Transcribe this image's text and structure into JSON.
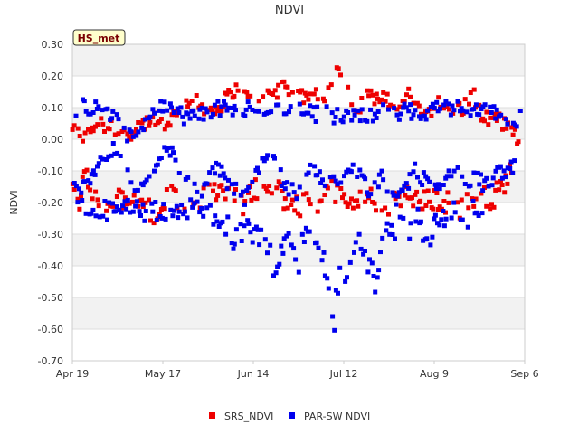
{
  "chart_data": {
    "type": "scatter",
    "title": "NDVI",
    "ylabel": "NDVI",
    "xlabel": "",
    "badge": "HS_met",
    "ylim": [
      -0.7,
      0.3
    ],
    "yticks": [
      "0.30",
      "0.20",
      "0.10",
      "0.00",
      "-0.10",
      "-0.20",
      "-0.30",
      "-0.40",
      "-0.50",
      "-0.60",
      "-0.70"
    ],
    "ytick_values": [
      0.3,
      0.2,
      0.1,
      0.0,
      -0.1,
      -0.2,
      -0.3,
      -0.4,
      -0.5,
      -0.6,
      -0.7
    ],
    "xlim_days": [
      0,
      140
    ],
    "xticks": [
      {
        "label": "Apr 19",
        "day": 0
      },
      {
        "label": "May 17",
        "day": 28
      },
      {
        "label": "Jun 14",
        "day": 56
      },
      {
        "label": "Jul 12",
        "day": 84
      },
      {
        "label": "Aug 9",
        "day": 112
      },
      {
        "label": "Sep 6",
        "day": 140
      }
    ],
    "legend": [
      {
        "name": "SRS_NDVI",
        "color": "#ee0000"
      },
      {
        "name": "PAR-SW NDVI",
        "color": "#0000ee"
      }
    ],
    "series": [
      {
        "name": "SRS_NDVI",
        "color": "#ee0000",
        "high": [
          [
            0,
            0.04
          ],
          [
            2,
            0.02
          ],
          [
            4,
            0.0
          ],
          [
            6,
            0.04
          ],
          [
            8,
            0.05
          ],
          [
            14,
            0.03
          ],
          [
            17,
            0.02
          ],
          [
            19,
            0.01
          ],
          [
            22,
            0.05
          ],
          [
            25,
            0.06
          ],
          [
            28,
            0.04
          ],
          [
            31,
            0.07
          ],
          [
            34,
            0.1
          ],
          [
            37,
            0.13
          ],
          [
            40,
            0.1
          ],
          [
            44,
            0.09
          ],
          [
            48,
            0.13
          ],
          [
            50,
            0.16
          ],
          [
            53,
            0.14
          ],
          [
            56,
            0.11
          ],
          [
            59,
            0.13
          ],
          [
            62,
            0.15
          ],
          [
            65,
            0.16
          ],
          [
            68,
            0.15
          ],
          [
            71,
            0.13
          ],
          [
            74,
            0.15
          ],
          [
            78,
            0.13
          ],
          [
            80,
            0.18
          ],
          [
            82,
            0.21
          ],
          [
            84,
            0.18
          ],
          [
            86,
            0.13
          ],
          [
            88,
            0.09
          ],
          [
            90,
            0.12
          ],
          [
            92,
            0.15
          ],
          [
            94,
            0.13
          ],
          [
            98,
            0.12
          ],
          [
            101,
            0.11
          ],
          [
            104,
            0.15
          ],
          [
            106,
            0.12
          ],
          [
            108,
            0.1
          ],
          [
            110,
            0.09
          ],
          [
            113,
            0.11
          ],
          [
            115,
            0.1
          ],
          [
            118,
            0.09
          ],
          [
            121,
            0.1
          ],
          [
            124,
            0.14
          ],
          [
            127,
            0.06
          ],
          [
            130,
            0.07
          ],
          [
            133,
            0.05
          ],
          [
            135,
            0.04
          ],
          [
            137,
            0.01
          ],
          [
            139,
            -0.02
          ]
        ],
        "low": [
          [
            0,
            -0.17
          ],
          [
            2,
            -0.2
          ],
          [
            4,
            -0.12
          ],
          [
            8,
            -0.2
          ],
          [
            12,
            -0.22
          ],
          [
            15,
            -0.18
          ],
          [
            22,
            -0.2
          ],
          [
            25,
            -0.24
          ],
          [
            28,
            -0.19
          ],
          [
            31,
            -0.17
          ],
          [
            34,
            -0.2
          ],
          [
            39,
            -0.2
          ],
          [
            42,
            -0.17
          ],
          [
            47,
            -0.18
          ],
          [
            50,
            -0.18
          ],
          [
            53,
            -0.22
          ],
          [
            56,
            -0.16
          ],
          [
            60,
            -0.14
          ],
          [
            64,
            -0.17
          ],
          [
            68,
            -0.22
          ],
          [
            73,
            -0.2
          ],
          [
            77,
            -0.21
          ],
          [
            80,
            -0.15
          ],
          [
            86,
            -0.21
          ],
          [
            92,
            -0.18
          ],
          [
            95,
            -0.22
          ],
          [
            100,
            -0.2
          ],
          [
            104,
            -0.18
          ],
          [
            108,
            -0.2
          ],
          [
            112,
            -0.19
          ],
          [
            116,
            -0.2
          ],
          [
            119,
            -0.22
          ],
          [
            123,
            -0.2
          ],
          [
            127,
            -0.17
          ],
          [
            130,
            -0.19
          ],
          [
            134,
            -0.13
          ],
          [
            137,
            -0.08
          ]
        ]
      },
      {
        "name": "PAR-SW NDVI",
        "color": "#0000ee",
        "high": [
          [
            0,
            0.08
          ],
          [
            3,
            0.11
          ],
          [
            6,
            0.1
          ],
          [
            10,
            0.1
          ],
          [
            13,
            0.07
          ],
          [
            17,
            0.0
          ],
          [
            22,
            0.05
          ],
          [
            25,
            0.1
          ],
          [
            28,
            0.11
          ],
          [
            31,
            0.1
          ],
          [
            35,
            0.07
          ],
          [
            39,
            0.08
          ],
          [
            43,
            0.09
          ],
          [
            47,
            0.1
          ],
          [
            51,
            0.08
          ],
          [
            55,
            0.1
          ],
          [
            59,
            0.09
          ],
          [
            63,
            0.09
          ],
          [
            67,
            0.09
          ],
          [
            71,
            0.1
          ],
          [
            75,
            0.08
          ],
          [
            79,
            0.08
          ],
          [
            83,
            0.07
          ],
          [
            87,
            0.08
          ],
          [
            91,
            0.07
          ],
          [
            95,
            0.09
          ],
          [
            99,
            0.08
          ],
          [
            103,
            0.09
          ],
          [
            107,
            0.08
          ],
          [
            111,
            0.09
          ],
          [
            115,
            0.1
          ],
          [
            119,
            0.1
          ],
          [
            123,
            0.1
          ],
          [
            127,
            0.09
          ],
          [
            131,
            0.08
          ],
          [
            134,
            0.05
          ],
          [
            137,
            0.03
          ],
          [
            139,
            0.08
          ]
        ],
        "mid": [
          [
            0,
            -0.15
          ],
          [
            2,
            -0.18
          ],
          [
            4,
            -0.13
          ],
          [
            6,
            -0.11
          ],
          [
            8,
            -0.08
          ],
          [
            10,
            -0.05
          ],
          [
            13,
            -0.03
          ],
          [
            16,
            -0.1
          ],
          [
            19,
            -0.14
          ],
          [
            22,
            -0.15
          ],
          [
            24,
            -0.13
          ],
          [
            26,
            -0.1
          ],
          [
            28,
            -0.05
          ],
          [
            31,
            -0.02
          ],
          [
            34,
            -0.12
          ],
          [
            37,
            -0.15
          ],
          [
            40,
            -0.18
          ],
          [
            43,
            -0.08
          ],
          [
            46,
            -0.1
          ],
          [
            48,
            -0.14
          ],
          [
            51,
            -0.17
          ],
          [
            53,
            -0.19
          ],
          [
            56,
            -0.12
          ],
          [
            59,
            -0.08
          ],
          [
            62,
            -0.05
          ],
          [
            66,
            -0.15
          ],
          [
            70,
            -0.18
          ],
          [
            74,
            -0.1
          ],
          [
            78,
            -0.14
          ],
          [
            84,
            -0.12
          ],
          [
            87,
            -0.08
          ],
          [
            92,
            -0.16
          ],
          [
            96,
            -0.12
          ],
          [
            100,
            -0.2
          ],
          [
            103,
            -0.15
          ],
          [
            106,
            -0.1
          ],
          [
            110,
            -0.14
          ],
          [
            113,
            -0.17
          ],
          [
            116,
            -0.13
          ],
          [
            119,
            -0.08
          ],
          [
            122,
            -0.16
          ],
          [
            125,
            -0.12
          ],
          [
            128,
            -0.15
          ],
          [
            131,
            -0.1
          ],
          [
            134,
            -0.12
          ],
          [
            137,
            -0.08
          ]
        ],
        "low": [
          [
            3,
            -0.2
          ],
          [
            6,
            -0.23
          ],
          [
            18,
            -0.22
          ],
          [
            33,
            -0.24
          ],
          [
            37,
            -0.22
          ],
          [
            45,
            -0.25
          ],
          [
            48,
            -0.27
          ],
          [
            50,
            -0.32
          ],
          [
            53,
            -0.28
          ],
          [
            60,
            -0.33
          ],
          [
            62,
            -0.38
          ],
          [
            63,
            -0.45
          ],
          [
            66,
            -0.3
          ],
          [
            68,
            -0.36
          ],
          [
            70,
            -0.4
          ],
          [
            72,
            -0.29
          ],
          [
            75,
            -0.32
          ],
          [
            77,
            -0.35
          ],
          [
            79,
            -0.42
          ],
          [
            80,
            -0.5
          ],
          [
            81,
            -0.58
          ],
          [
            82,
            -0.47
          ],
          [
            83,
            -0.38
          ],
          [
            85,
            -0.43
          ],
          [
            87,
            -0.33
          ],
          [
            89,
            -0.3
          ],
          [
            91,
            -0.38
          ],
          [
            93,
            -0.42
          ],
          [
            94,
            -0.48
          ],
          [
            96,
            -0.3
          ],
          [
            99,
            -0.27
          ],
          [
            100,
            -0.35
          ],
          [
            102,
            -0.24
          ],
          [
            105,
            -0.3
          ],
          [
            107,
            -0.22
          ],
          [
            109,
            -0.31
          ],
          [
            110,
            -0.36
          ],
          [
            112,
            -0.28
          ],
          [
            115,
            -0.24
          ],
          [
            118,
            -0.23
          ],
          [
            121,
            -0.27
          ],
          [
            122,
            -0.32
          ],
          [
            124,
            -0.22
          ],
          [
            127,
            -0.2
          ]
        ]
      }
    ]
  }
}
